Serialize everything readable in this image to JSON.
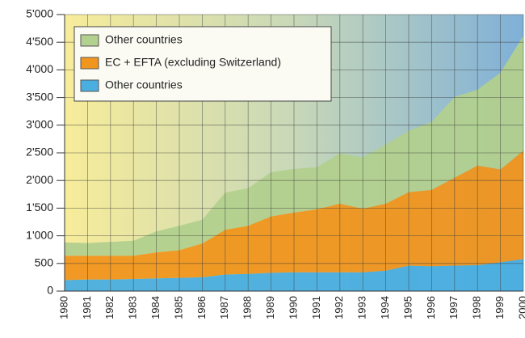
{
  "chart_data": {
    "type": "stacked_area",
    "categories": [
      "1980",
      "1981",
      "1982",
      "1983",
      "1984",
      "1985",
      "1986",
      "1987",
      "1988",
      "1989",
      "1990",
      "1991",
      "1992",
      "1993",
      "1994",
      "1995",
      "1996",
      "1997",
      "1998",
      "1999",
      "2000"
    ],
    "series": [
      {
        "name": "Other countries",
        "color": "#4aaee0",
        "values": [
          200,
          210,
          210,
          220,
          230,
          240,
          250,
          300,
          310,
          330,
          340,
          340,
          340,
          340,
          370,
          460,
          450,
          460,
          470,
          520,
          580
        ]
      },
      {
        "name": "EC + EFTA (excluding Switzerland)",
        "color": "#f0951e",
        "values": [
          440,
          430,
          430,
          420,
          470,
          500,
          610,
          810,
          870,
          1020,
          1080,
          1140,
          1240,
          1150,
          1210,
          1330,
          1380,
          1590,
          1800,
          1680,
          1960
        ]
      },
      {
        "name": "Other countries",
        "color": "#b2d08e",
        "values": [
          240,
          230,
          250,
          270,
          380,
          440,
          430,
          670,
          680,
          800,
          790,
          760,
          910,
          930,
          1070,
          1110,
          1230,
          1460,
          1370,
          1750,
          2080
        ]
      }
    ],
    "ylim": [
      0,
      5000
    ],
    "yticks": [
      0,
      500,
      {
        "value": 1000,
        "label": "1'000"
      },
      {
        "value": 1500,
        "label": "1'500"
      },
      {
        "value": 2000,
        "label": "2'000"
      },
      {
        "value": 2500,
        "label": "2'500"
      },
      {
        "value": 3000,
        "label": "3'000"
      },
      {
        "value": 3500,
        "label": "3'500"
      },
      {
        "value": 4000,
        "label": "4'000"
      },
      {
        "value": 4500,
        "label": "4'500"
      },
      {
        "value": 5000,
        "label": "5'000"
      }
    ],
    "grid": true,
    "legend": "upper left"
  }
}
